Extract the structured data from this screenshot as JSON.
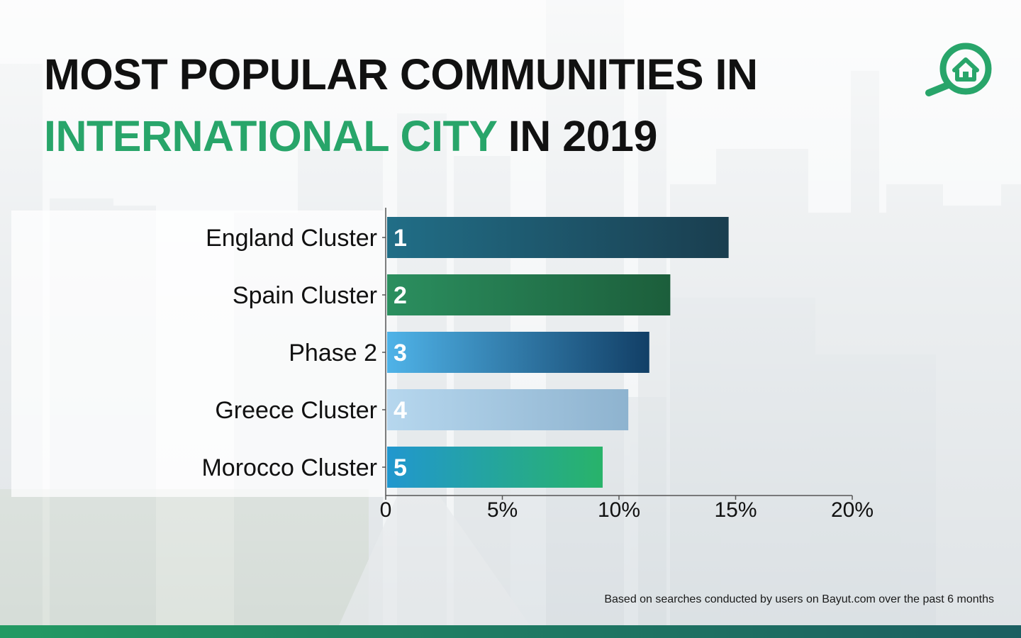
{
  "header": {
    "title_line1": "MOST POPULAR COMMUNITIES IN",
    "title_accent": "INTERNATIONAL CITY",
    "title_rest": " IN 2019"
  },
  "logo": {
    "icon": "house-search-icon",
    "color": "#28a56a"
  },
  "chart_data": {
    "type": "bar",
    "orientation": "horizontal",
    "title": "",
    "xlabel": "",
    "ylabel": "",
    "categories": [
      "England Cluster",
      "Spain Cluster",
      "Phase 2",
      "Greece Cluster",
      "Morocco Cluster"
    ],
    "values": [
      14.7,
      12.2,
      11.3,
      10.4,
      9.3
    ],
    "bar_labels": [
      "1",
      "2",
      "3",
      "4",
      "5"
    ],
    "xlim": [
      0,
      20
    ],
    "xticks": [
      0,
      5,
      10,
      15,
      20
    ],
    "xtick_labels": [
      "0",
      "5%",
      "10%",
      "15%",
      "20%"
    ],
    "grid": false,
    "bar_gradients": [
      [
        "#216e87",
        "#1a3e4f"
      ],
      [
        "#2b8f5f",
        "#1c5e3b"
      ],
      [
        "#4fb3e8",
        "#123f66"
      ],
      [
        "#b6d7ee",
        "#8eb3cf"
      ],
      [
        "#2197cf",
        "#28b36a"
      ]
    ]
  },
  "footnote": "Based on searches conducted by users on Bayut.com over the past 6 months",
  "footer_bar_color": "#1f7d63"
}
